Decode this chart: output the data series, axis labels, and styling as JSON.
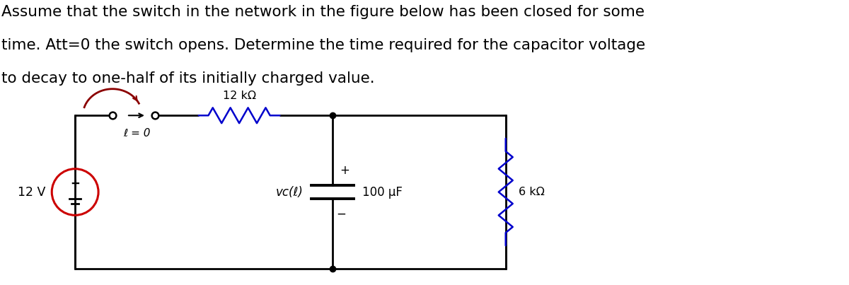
{
  "text_lines": [
    "Assume that the switch in the network in the figure below has been closed for some",
    "time. Att=0 the switch opens. Determine the time required for the capacitor voltage",
    "to decay to one-half of its initially charged value."
  ],
  "background_color": "#ffffff",
  "text_color": "#000000",
  "text_fontsize": 15.5,
  "circuit": {
    "resistor_label": "12 kΩ",
    "switch_label": "ℓ = 0",
    "source_label": "12 V",
    "capacitor_label": "100 μF",
    "resistor2_label": "6 kΩ",
    "vc_label": "vᴄ(ℓ)",
    "plus_label": "+",
    "minus_label": "−",
    "wire_color": "#000000",
    "resistor_color": "#0000cc",
    "resistor2_color": "#0000cc",
    "source_circle_color": "#cc0000",
    "switch_arc_color": "#8b0000",
    "node_color": "#000000"
  }
}
